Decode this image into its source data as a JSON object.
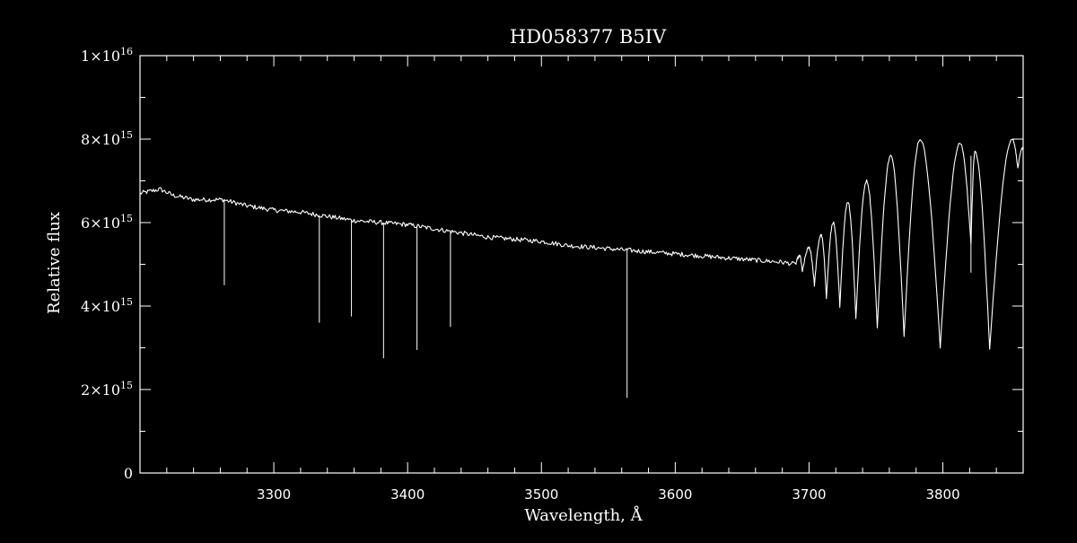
{
  "chart_data": {
    "type": "line",
    "title": "HD058377   B5IV",
    "xlabel": "Wavelength, Å",
    "ylabel": "Relative flux",
    "xlim": [
      3200,
      3860
    ],
    "ylim": [
      0,
      1e+16
    ],
    "x_ticks": [
      3300,
      3400,
      3500,
      3600,
      3700,
      3800
    ],
    "x_tick_labels": [
      "3300",
      "3400",
      "3500",
      "3600",
      "3700",
      "3800"
    ],
    "y_ticks": [
      {
        "value": 0,
        "mantissa": "0",
        "exponent": ""
      },
      {
        "value": 2000000000000000.0,
        "mantissa": "2×10",
        "exponent": "15"
      },
      {
        "value": 4000000000000000.0,
        "mantissa": "4×10",
        "exponent": "15"
      },
      {
        "value": 6000000000000000.0,
        "mantissa": "6×10",
        "exponent": "15"
      },
      {
        "value": 8000000000000000.0,
        "mantissa": "8×10",
        "exponent": "15"
      },
      {
        "value": 1e+16,
        "mantissa": "1×10",
        "exponent": "16"
      }
    ],
    "grid": false,
    "colors": {
      "background": "#000000",
      "line": "#ffffff",
      "axes": "#ffffff"
    },
    "series": [
      {
        "points": [
          [
            3200,
            6700000000000000.0
          ],
          [
            3215,
            6800000000000000.0
          ],
          [
            3225,
            6650000000000000.0
          ],
          [
            3240,
            6550000000000000.0
          ],
          [
            3262,
            6550000000000000.0
          ],
          [
            3280,
            6400000000000000.0
          ],
          [
            3300,
            6300000000000000.0
          ],
          [
            3320,
            6250000000000000.0
          ],
          [
            3340,
            6150000000000000.0
          ],
          [
            3360,
            6050000000000000.0
          ],
          [
            3380,
            6000000000000000.0
          ],
          [
            3400,
            5950000000000000.0
          ],
          [
            3420,
            5850000000000000.0
          ],
          [
            3440,
            5750000000000000.0
          ],
          [
            3460,
            5650000000000000.0
          ],
          [
            3480,
            5600000000000000.0
          ],
          [
            3500,
            5550000000000000.0
          ],
          [
            3520,
            5450000000000000.0
          ],
          [
            3540,
            5400000000000000.0
          ],
          [
            3560,
            5350000000000000.0
          ],
          [
            3580,
            5300000000000000.0
          ],
          [
            3600,
            5250000000000000.0
          ],
          [
            3620,
            5200000000000000.0
          ],
          [
            3640,
            5150000000000000.0
          ],
          [
            3660,
            5100000000000000.0
          ],
          [
            3680,
            5050000000000000.0
          ],
          [
            3690,
            5000000000000000.0
          ]
        ],
        "absorption_spikes": [
          {
            "x": 3263,
            "min": 4500000000000000.0
          },
          {
            "x": 3334,
            "min": 3600000000000000.0
          },
          {
            "x": 3358,
            "min": 3750000000000000.0
          },
          {
            "x": 3382,
            "min": 2750000000000000.0
          },
          {
            "x": 3407,
            "min": 2950000000000000.0
          },
          {
            "x": 3432,
            "min": 3500000000000000.0
          },
          {
            "x": 3564,
            "min": 1800000000000000.0
          },
          {
            "x": 3821,
            "min": 4800000000000000.0
          }
        ],
        "fringes": [
          {
            "max_x": 3693,
            "max": 5200000000000000.0,
            "min_x": 3695,
            "min": 4800000000000000.0
          },
          {
            "max_x": 3700,
            "max": 5400000000000000.0,
            "min_x": 3704,
            "min": 4500000000000000.0
          },
          {
            "max_x": 3709,
            "max": 5700000000000000.0,
            "min_x": 3713,
            "min": 4200000000000000.0
          },
          {
            "max_x": 3718,
            "max": 6000000000000000.0,
            "min_x": 3723,
            "min": 4000000000000000.0
          },
          {
            "max_x": 3729,
            "max": 6500000000000000.0,
            "min_x": 3735,
            "min": 3700000000000000.0
          },
          {
            "max_x": 3743,
            "max": 7000000000000000.0,
            "min_x": 3751,
            "min": 3500000000000000.0
          },
          {
            "max_x": 3761,
            "max": 7600000000000000.0,
            "min_x": 3771,
            "min": 3300000000000000.0
          },
          {
            "max_x": 3783,
            "max": 8000000000000000.0,
            "min_x": 3798,
            "min": 3000000000000000.0
          },
          {
            "max_x": 3813,
            "max": 7900000000000000.0,
            "min_x": 3821,
            "min": 5500000000000000.0
          },
          {
            "max_x": 3824,
            "max": 7700000000000000.0,
            "min_x": 3835,
            "min": 2950000000000000.0
          },
          {
            "max_x": 3852,
            "max": 8000000000000000.0,
            "min_x": 3856,
            "min": 7300000000000000.0
          },
          {
            "max_x": 3860,
            "max": 7800000000000000.0,
            "min_x": 3860,
            "min": 7800000000000000.0
          }
        ]
      }
    ]
  }
}
